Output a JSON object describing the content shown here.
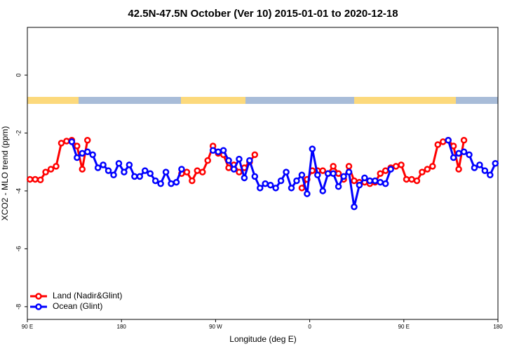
{
  "chart_data": {
    "type": "line",
    "title": "42.5N-47.5N October (Ver 10)   2015-01-01 to 2020-12-18",
    "x_label": "Longitude (deg E)",
    "y_label": "XCO2 - MLO trend (ppm)",
    "x": [
      92.5,
      97.5,
      102.5,
      107.5,
      112.5,
      117.5,
      122.5,
      127.5,
      132.5,
      137.5,
      142.5,
      147.5,
      152.5,
      157.5,
      162.5,
      167.5,
      172.5,
      177.5,
      182.5,
      187.5,
      192.5,
      197.5,
      202.5,
      207.5,
      212.5,
      217.5,
      222.5,
      227.5,
      232.5,
      237.5,
      242.5,
      247.5,
      252.5,
      257.5,
      262.5,
      267.5,
      272.5,
      277.5,
      282.5,
      287.5,
      292.5,
      297.5,
      302.5,
      307.5,
      312.5,
      317.5,
      322.5,
      327.5,
      332.5,
      337.5,
      342.5,
      347.5,
      352.5,
      357.5,
      362.5,
      367.5,
      372.5,
      377.5,
      382.5,
      387.5,
      392.5,
      397.5,
      402.5,
      407.5,
      412.5,
      417.5,
      422.5,
      427.5,
      432.5,
      437.5,
      442.5,
      447.5,
      452.5,
      457.5,
      462.5,
      467.5,
      472.5,
      477.5,
      482.5,
      487.5,
      492.5,
      497.5,
      502.5,
      507.5,
      512.5,
      517.5,
      522.5,
      527.5,
      532.5,
      537.5
    ],
    "series": [
      {
        "name": "Land (Nadir&Glint)",
        "color": "#ff0000",
        "values": [
          -3.6,
          -3.6,
          -3.62,
          -3.35,
          -3.25,
          -3.15,
          -2.35,
          -2.28,
          -2.25,
          -2.45,
          -3.25,
          -2.25,
          null,
          null,
          null,
          null,
          null,
          null,
          null,
          null,
          null,
          null,
          null,
          null,
          null,
          null,
          null,
          null,
          null,
          -3.4,
          -3.35,
          -3.65,
          -3.3,
          -3.35,
          -2.95,
          -2.45,
          -2.7,
          -2.75,
          -3.2,
          -3.1,
          -3.35,
          -3.2,
          -3.0,
          -2.75,
          null,
          null,
          null,
          null,
          null,
          null,
          null,
          null,
          -3.9,
          -3.6,
          -3.3,
          -3.3,
          -3.3,
          -3.4,
          -3.15,
          -3.4,
          -3.6,
          -3.15,
          -3.65,
          -3.7,
          -3.7,
          -3.75,
          -3.7,
          -3.4,
          -3.3,
          -3.2,
          -3.15,
          -3.1,
          -3.6,
          -3.6,
          -3.65,
          -3.35,
          -3.25,
          -3.15,
          -2.4,
          -2.3,
          -2.25,
          -2.45,
          -3.25,
          -2.25,
          null,
          null,
          null,
          null,
          null,
          null
        ]
      },
      {
        "name": "Ocean (Glint)",
        "color": "#0000ff",
        "values": [
          null,
          null,
          null,
          null,
          null,
          null,
          null,
          null,
          -2.3,
          -2.85,
          -2.7,
          -2.65,
          -2.75,
          -3.2,
          -3.1,
          -3.3,
          -3.45,
          -3.05,
          -3.35,
          -3.1,
          -3.5,
          -3.5,
          -3.3,
          -3.4,
          -3.65,
          -3.75,
          -3.35,
          -3.75,
          -3.7,
          -3.25,
          null,
          null,
          null,
          null,
          null,
          -2.6,
          -2.65,
          -2.6,
          -2.95,
          -3.25,
          -2.9,
          -3.55,
          -2.95,
          -3.5,
          -3.9,
          -3.75,
          -3.8,
          -3.9,
          -3.65,
          -3.35,
          -3.9,
          -3.65,
          -3.45,
          -4.1,
          -2.55,
          -3.45,
          -4.0,
          -3.4,
          -3.4,
          -3.85,
          -3.5,
          -3.35,
          -4.55,
          -3.8,
          -3.55,
          -3.65,
          -3.65,
          -3.7,
          -3.75,
          -3.25,
          null,
          null,
          null,
          null,
          null,
          null,
          null,
          null,
          null,
          null,
          -2.25,
          -2.85,
          -2.7,
          -2.65,
          -2.75,
          -3.2,
          -3.1,
          -3.3,
          -3.45,
          -3.05
        ]
      }
    ],
    "xlim": [
      90,
      540
    ],
    "xticks": [
      {
        "value": 90,
        "label": "90 E"
      },
      {
        "value": 180,
        "label": "180"
      },
      {
        "value": 270,
        "label": "90 W"
      },
      {
        "value": 360,
        "label": "0"
      },
      {
        "value": 450,
        "label": "90 E"
      },
      {
        "value": 540,
        "label": "180"
      }
    ],
    "ylim": [
      -8.44,
      1.65
    ],
    "yticks": [
      0,
      -2,
      -4,
      -6,
      -8
    ],
    "legend": "bottom-left"
  }
}
